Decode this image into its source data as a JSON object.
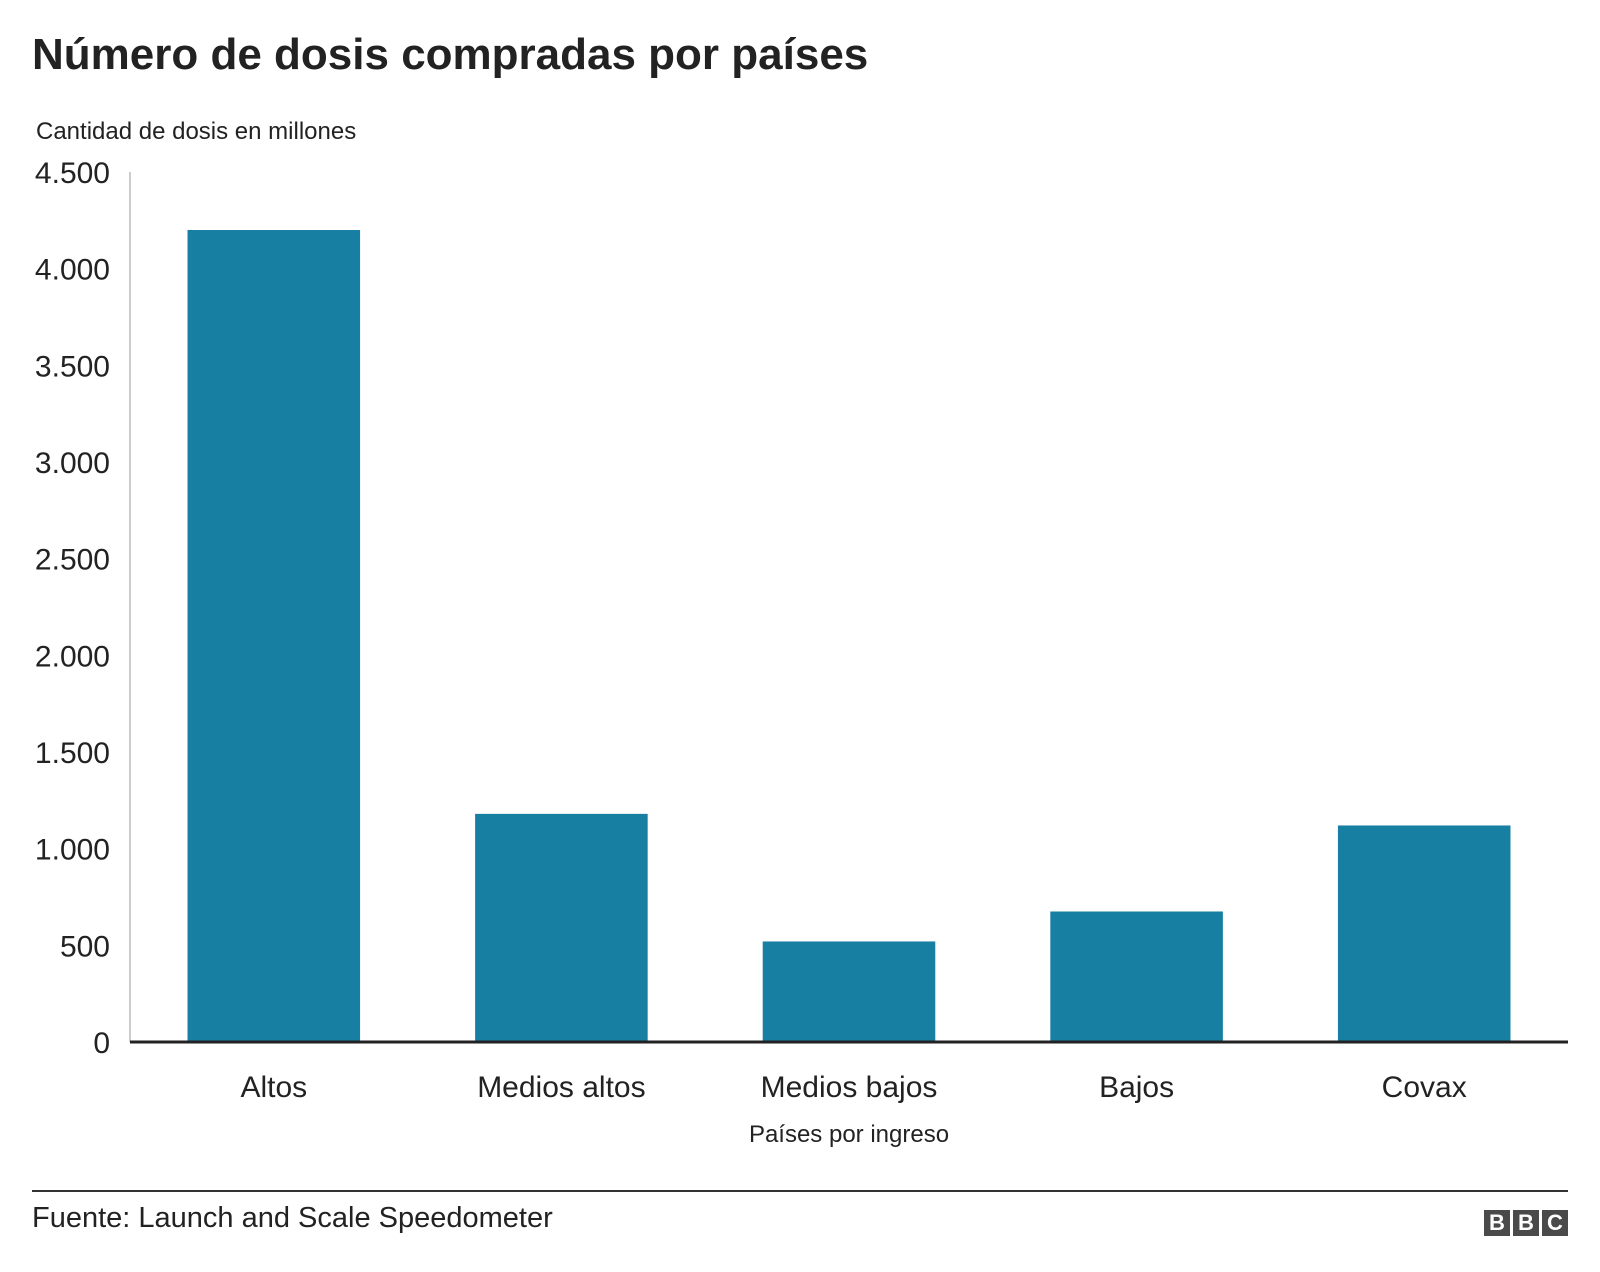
{
  "chart_data": {
    "type": "bar",
    "title": "Número de dosis compradas por países",
    "ylabel": "Cantidad de dosis en millones",
    "xlabel": "Países por ingreso",
    "categories": [
      "Altos",
      "Medios altos",
      "Medios bajos",
      "Bajos",
      "Covax"
    ],
    "values": [
      4200,
      1180,
      520,
      675,
      1120
    ],
    "ylim": [
      0,
      4500
    ],
    "yticks": [
      0,
      500,
      1000,
      1500,
      2000,
      2500,
      3000,
      3500,
      4000,
      4500
    ],
    "ytick_labels": [
      "0",
      "500",
      "1.000",
      "1.500",
      "2.000",
      "2.500",
      "3.000",
      "3.500",
      "4.000",
      "4.500"
    ],
    "grid": false,
    "bar_color": "#177fa2"
  },
  "footer": {
    "source": "Fuente: Launch and Scale Speedometer",
    "logo_letters": [
      "B",
      "B",
      "C"
    ]
  }
}
